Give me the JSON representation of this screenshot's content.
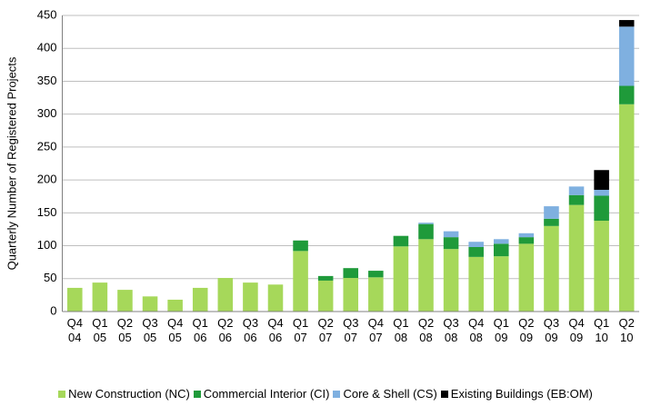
{
  "chart_data": {
    "type": "stacked_bar",
    "y_label": "Quarterly Number of Registered Projects",
    "categories": [
      "Q4 04",
      "Q1 05",
      "Q2 05",
      "Q3 05",
      "Q4 05",
      "Q1 06",
      "Q2 06",
      "Q3 06",
      "Q4 06",
      "Q1 07",
      "Q2 07",
      "Q3 07",
      "Q4 07",
      "Q1 08",
      "Q2 08",
      "Q3 08",
      "Q4 08",
      "Q1 09",
      "Q2 09",
      "Q3 09",
      "Q4 09",
      "Q1 10",
      "Q2 10"
    ],
    "series": [
      {
        "name": "New Construction (NC)",
        "color": "#a6d85a",
        "values": [
          36,
          44,
          33,
          23,
          18,
          36,
          51,
          44,
          41,
          92,
          47,
          51,
          52,
          99,
          110,
          95,
          83,
          84,
          103,
          130,
          162,
          138,
          315
        ]
      },
      {
        "name": "Commercial Interior (CI)",
        "color": "#1f9a3a",
        "values": [
          0,
          0,
          0,
          0,
          0,
          0,
          0,
          0,
          0,
          16,
          7,
          15,
          10,
          16,
          23,
          18,
          15,
          19,
          10,
          11,
          15,
          38,
          28
        ]
      },
      {
        "name": "Core & Shell (CS)",
        "color": "#7fb0e0",
        "values": [
          0,
          0,
          0,
          0,
          0,
          0,
          0,
          0,
          0,
          0,
          0,
          0,
          0,
          0,
          2,
          9,
          8,
          7,
          6,
          19,
          13,
          9,
          90
        ]
      },
      {
        "name": "Existing Buildings (EB:OM)",
        "color": "#000000",
        "values": [
          0,
          0,
          0,
          0,
          0,
          0,
          0,
          0,
          0,
          0,
          0,
          0,
          0,
          0,
          0,
          0,
          0,
          0,
          0,
          0,
          0,
          30,
          10
        ]
      }
    ],
    "ylim": [
      0,
      450
    ],
    "yticks": [
      0,
      50,
      100,
      150,
      200,
      250,
      300,
      350,
      400,
      450
    ],
    "grid": true,
    "legend": "bottom"
  }
}
